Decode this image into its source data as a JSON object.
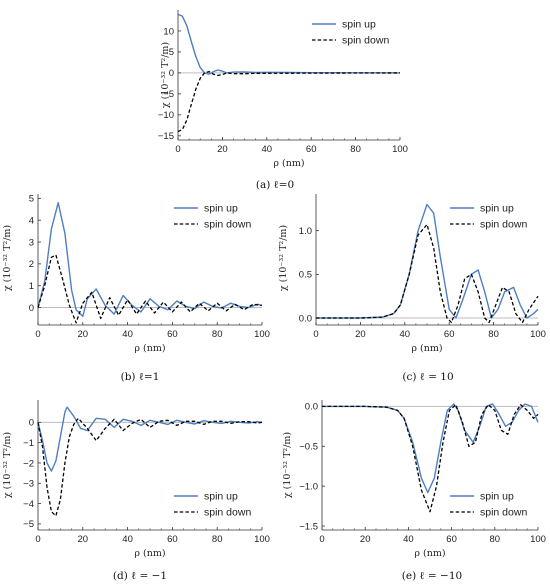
{
  "colors": {
    "spin_up": "#4f7fbf",
    "spin_down": "#000000",
    "axis": "#333333",
    "zero_line": "#bdbdbd"
  },
  "legend": {
    "spin_up": "spin up",
    "spin_down": "spin down"
  },
  "chart_data": [
    {
      "type": "line",
      "caption": "(a) ℓ=0",
      "xlabel": "ρ (nm)",
      "ylabel": "χ (10⁻³² T²/m)",
      "xlim": [
        0,
        100
      ],
      "ylim": [
        -16,
        15
      ],
      "xticks": [
        0,
        20,
        40,
        60,
        80,
        100
      ],
      "yticks": [
        -15,
        -10,
        -5,
        0,
        5,
        10
      ],
      "legend_position": "top-right",
      "series": [
        {
          "name": "spin up",
          "style": "solid",
          "x": [
            0,
            2,
            4,
            6,
            8,
            10,
            12,
            14,
            16,
            18,
            20,
            22,
            25,
            30,
            35,
            40,
            50,
            60,
            70,
            80,
            90,
            100
          ],
          "y": [
            14,
            13.5,
            11.2,
            7.5,
            3.9,
            1.3,
            0.0,
            -0.3,
            0.3,
            0.7,
            0.4,
            0.0,
            0.2,
            0.25,
            0.1,
            0.15,
            0.1,
            0.05,
            0.05,
            0.03,
            0.02,
            0.0
          ]
        },
        {
          "name": "spin down",
          "style": "dashed",
          "x": [
            0,
            2,
            4,
            6,
            8,
            10,
            12,
            14,
            16,
            18,
            20,
            22,
            25,
            30,
            35,
            40,
            50,
            60,
            70,
            80,
            90,
            100
          ],
          "y": [
            -14,
            -13.5,
            -11.2,
            -7.5,
            -3.9,
            -1.3,
            0.0,
            0.3,
            -0.3,
            -0.6,
            -0.4,
            0.0,
            -0.2,
            -0.2,
            -0.1,
            -0.1,
            -0.08,
            -0.05,
            -0.04,
            -0.03,
            -0.02,
            0.0
          ]
        }
      ]
    },
    {
      "type": "line",
      "caption": "(b) ℓ=1",
      "xlabel": "ρ (nm)",
      "ylabel": "χ (10⁻³² T²/m)",
      "xlim": [
        0,
        100
      ],
      "ylim": [
        -0.8,
        5.2
      ],
      "xticks": [
        0,
        20,
        40,
        60,
        80,
        100
      ],
      "yticks": [
        0,
        1,
        2,
        3,
        4,
        5
      ],
      "legend_position": "top-right",
      "series": [
        {
          "name": "spin up",
          "style": "solid",
          "x": [
            0,
            3,
            6,
            9,
            12,
            15,
            17,
            20,
            22,
            26,
            30,
            34,
            38,
            42,
            46,
            50,
            54,
            58,
            62,
            66,
            70,
            74,
            78,
            82,
            86,
            90,
            94,
            98,
            100
          ],
          "y": [
            0,
            1.2,
            3.6,
            4.8,
            3.4,
            0.8,
            -0.1,
            -0.4,
            0.4,
            0.85,
            0.1,
            -0.3,
            0.55,
            0.1,
            -0.2,
            0.4,
            0.05,
            -0.1,
            0.3,
            0.05,
            -0.05,
            0.25,
            0.05,
            -0.02,
            0.2,
            0.05,
            0.0,
            0.15,
            0.1
          ]
        },
        {
          "name": "spin down",
          "style": "dashed",
          "x": [
            0,
            3,
            6,
            8,
            11,
            14,
            17,
            20,
            24,
            28,
            32,
            36,
            40,
            44,
            48,
            52,
            56,
            60,
            64,
            68,
            72,
            76,
            80,
            84,
            88,
            92,
            96,
            100
          ],
          "y": [
            0,
            1.0,
            2.3,
            2.4,
            1.3,
            0.1,
            -0.7,
            0.2,
            0.7,
            -0.5,
            0.45,
            -0.35,
            0.35,
            -0.3,
            0.3,
            -0.25,
            0.25,
            -0.2,
            0.25,
            -0.2,
            0.2,
            -0.15,
            0.2,
            -0.15,
            0.15,
            -0.1,
            0.15,
            0.1
          ]
        }
      ]
    },
    {
      "type": "line",
      "caption": "(c) ℓ = 10",
      "xlabel": "ρ (nm)",
      "ylabel": "χ (10⁻³² T²/m)",
      "xlim": [
        0,
        100
      ],
      "ylim": [
        -0.08,
        1.42
      ],
      "xticks": [
        0,
        20,
        40,
        60,
        80,
        100
      ],
      "yticks": [
        0.0,
        0.5,
        1.0
      ],
      "legend_position": "top-right",
      "series": [
        {
          "name": "spin up",
          "style": "solid",
          "x": [
            0,
            20,
            30,
            35,
            38,
            42,
            46,
            50,
            53,
            56,
            60,
            63,
            66,
            70,
            73,
            76,
            79,
            82,
            85,
            89,
            92,
            95,
            98,
            100
          ],
          "y": [
            0,
            0,
            0.01,
            0.05,
            0.15,
            0.5,
            1.0,
            1.3,
            1.2,
            0.7,
            0.1,
            0.0,
            0.2,
            0.5,
            0.55,
            0.3,
            0.0,
            0.1,
            0.3,
            0.35,
            0.15,
            0.0,
            0.05,
            0.1
          ]
        },
        {
          "name": "spin down",
          "style": "dashed",
          "x": [
            0,
            20,
            30,
            35,
            38,
            42,
            46,
            50,
            53,
            56,
            59,
            61,
            64,
            67,
            70,
            73,
            76,
            78,
            81,
            84,
            87,
            90,
            93,
            96,
            100
          ],
          "y": [
            0,
            0,
            0.01,
            0.05,
            0.15,
            0.5,
            0.95,
            1.07,
            0.8,
            0.3,
            0.0,
            -0.05,
            0.15,
            0.45,
            0.5,
            0.3,
            0.0,
            -0.05,
            0.15,
            0.35,
            0.3,
            0.05,
            -0.05,
            0.1,
            0.25
          ]
        }
      ]
    },
    {
      "type": "line",
      "caption": "(d) ℓ = −1",
      "xlabel": "ρ (nm)",
      "ylabel": "χ (10⁻³² T²/m)",
      "xlim": [
        0,
        100
      ],
      "ylim": [
        -5.3,
        1.1
      ],
      "xticks": [
        0,
        20,
        40,
        60,
        80,
        100
      ],
      "yticks": [
        -5,
        -4,
        -3,
        -2,
        -1,
        0
      ],
      "legend_position": "bottom-right",
      "series": [
        {
          "name": "spin up",
          "style": "solid",
          "x": [
            0,
            2,
            4,
            6,
            8,
            10,
            12,
            13,
            16,
            19,
            22,
            26,
            30,
            34,
            38,
            42,
            46,
            50,
            54,
            58,
            62,
            66,
            70,
            74,
            78,
            82,
            86,
            90,
            94,
            98,
            100
          ],
          "y": [
            0,
            -0.9,
            -2.0,
            -2.4,
            -1.9,
            -0.7,
            0.5,
            0.75,
            0.3,
            -0.3,
            -0.4,
            0.2,
            0.15,
            -0.25,
            0.15,
            0.05,
            -0.15,
            0.1,
            0.0,
            -0.1,
            0.1,
            0.0,
            -0.08,
            0.08,
            0.0,
            -0.05,
            0.05,
            0.0,
            -0.03,
            0.03,
            0.0
          ]
        },
        {
          "name": "spin down",
          "style": "dashed",
          "x": [
            0,
            2,
            4,
            6,
            8,
            10,
            12,
            14,
            16,
            18,
            22,
            26,
            30,
            34,
            38,
            42,
            46,
            50,
            54,
            58,
            62,
            66,
            70,
            74,
            78,
            82,
            86,
            90,
            94,
            98,
            100
          ],
          "y": [
            0,
            -1.2,
            -3.2,
            -4.4,
            -4.6,
            -3.8,
            -2.0,
            -0.7,
            -0.1,
            0.2,
            -0.3,
            -0.9,
            -0.3,
            0.15,
            -0.4,
            -0.05,
            0.15,
            -0.25,
            0.05,
            0.1,
            -0.15,
            0.05,
            0.05,
            -0.1,
            0.05,
            0.05,
            -0.05,
            0.03,
            0.03,
            -0.03,
            0.0
          ]
        }
      ]
    },
    {
      "type": "line",
      "caption": "(e) ℓ = −10",
      "xlabel": "ρ (nm)",
      "ylabel": "χ (10⁻³² T²/m)",
      "xlim": [
        0,
        100
      ],
      "ylim": [
        -1.55,
        0.08
      ],
      "xticks": [
        0,
        20,
        40,
        60,
        80,
        100
      ],
      "yticks": [
        -1.5,
        -1.0,
        -0.5,
        0.0
      ],
      "legend_position": "bottom-right",
      "series": [
        {
          "name": "spin up",
          "style": "solid",
          "x": [
            0,
            20,
            30,
            35,
            38,
            42,
            46,
            49,
            52,
            55,
            58,
            61,
            63,
            66,
            70,
            73,
            76,
            79,
            82,
            85,
            88,
            91,
            94,
            97,
            100
          ],
          "y": [
            0,
            0,
            -0.01,
            -0.05,
            -0.15,
            -0.45,
            -0.9,
            -1.08,
            -0.9,
            -0.45,
            -0.05,
            0.03,
            -0.05,
            -0.3,
            -0.45,
            -0.25,
            0.0,
            0.03,
            -0.1,
            -0.25,
            -0.2,
            -0.05,
            0.03,
            0.0,
            -0.2
          ]
        },
        {
          "name": "spin down",
          "style": "dashed",
          "x": [
            0,
            20,
            30,
            35,
            38,
            42,
            46,
            50,
            53,
            56,
            59,
            62,
            65,
            68,
            71,
            74,
            77,
            80,
            83,
            86,
            89,
            92,
            95,
            98,
            100
          ],
          "y": [
            0,
            0,
            -0.01,
            -0.05,
            -0.15,
            -0.5,
            -1.05,
            -1.32,
            -1.0,
            -0.45,
            -0.05,
            0.02,
            -0.2,
            -0.5,
            -0.45,
            -0.1,
            0.02,
            -0.05,
            -0.3,
            -0.35,
            -0.1,
            0.02,
            -0.05,
            -0.15,
            -0.1
          ]
        }
      ]
    }
  ]
}
